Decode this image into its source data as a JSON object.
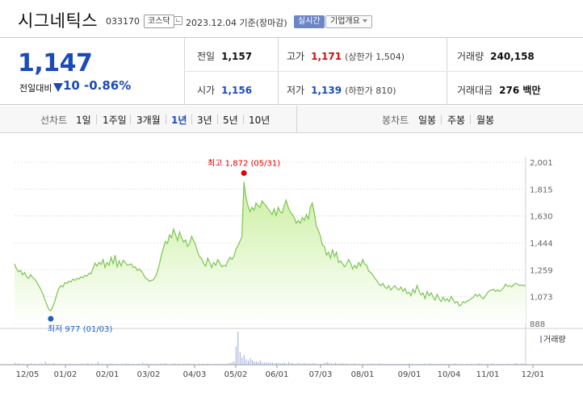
{
  "header": {
    "name": "시그네틱스",
    "code": "033170",
    "market": "코스닥",
    "date": "2023.12.04 기준(장마감)",
    "realtime": "실시간",
    "overview": "기업개요"
  },
  "quote": {
    "price": "1,147",
    "change_label": "전일대비",
    "change": "10",
    "change_pct": "-0.86%",
    "prev_close_label": "전일",
    "prev_close": "1,157",
    "high_label": "고가",
    "high": "1,171",
    "upper_limit": "(상한가 1,504)",
    "volume_label": "거래량",
    "volume": "240,158",
    "open_label": "시가",
    "open": "1,156",
    "low_label": "저가",
    "low": "1,139",
    "lower_limit": "(하한가 810)",
    "value_label": "거래대금",
    "value": "276 백만"
  },
  "tabs": {
    "line_label": "선차트",
    "periods": [
      "1일",
      "1주일",
      "3개월",
      "1년",
      "3년",
      "5년",
      "10년"
    ],
    "active": "1년",
    "candle_label": "봉차트",
    "candles": [
      "일봉",
      "주봉",
      "월봉"
    ]
  },
  "colors": {
    "line": "#7cc452",
    "fill_top": "#c9ef9e",
    "high_marker": "#e00000",
    "low_marker": "#1a5fc7",
    "volume": "#9aa8d6"
  },
  "chart_data": {
    "type": "area",
    "title": "",
    "ylim": [
      888,
      2001
    ],
    "yticks": [
      "2,001",
      "1,815",
      "1,630",
      "1,444",
      "1,259",
      "1,073",
      "888"
    ],
    "xticks": [
      "12/05",
      "01/02",
      "02/01",
      "03/02",
      "04/03",
      "05/02",
      "06/01",
      "07/03",
      "08/01",
      "09/01",
      "10/04",
      "11/01",
      "12/01"
    ],
    "high_annotation": "최고 1,872 (05/31)",
    "low_annotation": "최저 977 (01/03)",
    "volume_label": "거래량",
    "series": [
      {
        "values": [
          1300,
          1265,
          1245,
          1255,
          1225,
          1240,
          1210,
          1200,
          1225,
          1205,
          1195,
          1175,
          1150,
          1125,
          1095,
          1055,
          1020,
          985,
          977,
          1005,
          1040,
          1090,
          1130,
          1150,
          1140,
          1170,
          1165,
          1180,
          1175,
          1195,
          1185,
          1200,
          1195,
          1210,
          1205,
          1220,
          1215,
          1235,
          1230,
          1270,
          1305,
          1285,
          1310,
          1295,
          1330,
          1275,
          1310,
          1290,
          1345,
          1300,
          1360,
          1280,
          1320,
          1285,
          1325,
          1310,
          1290,
          1295,
          1300,
          1275,
          1280,
          1255,
          1265,
          1250,
          1230,
          1200,
          1195,
          1180,
          1185,
          1190,
          1210,
          1245,
          1300,
          1360,
          1410,
          1455,
          1440,
          1500,
          1480,
          1540,
          1500,
          1460,
          1520,
          1480,
          1450,
          1465,
          1420,
          1440,
          1490,
          1460,
          1430,
          1380,
          1350,
          1335,
          1300,
          1285,
          1340,
          1310,
          1275,
          1310,
          1290,
          1330,
          1305,
          1280,
          1290,
          1285,
          1320,
          1345,
          1330,
          1350,
          1400,
          1425,
          1455,
          1485,
          1865,
          1760,
          1700,
          1660,
          1690,
          1670,
          1720,
          1700,
          1690,
          1735,
          1715,
          1700,
          1680,
          1660,
          1640,
          1680,
          1630,
          1690,
          1660,
          1650,
          1700,
          1740,
          1690,
          1660,
          1640,
          1620,
          1580,
          1600,
          1580,
          1620,
          1600,
          1640,
          1610,
          1690,
          1720,
          1650,
          1560,
          1530,
          1490,
          1430,
          1420,
          1360,
          1380,
          1340,
          1400,
          1350,
          1380,
          1310,
          1320,
          1300,
          1280,
          1300,
          1330,
          1305,
          1265,
          1290,
          1270,
          1310,
          1285,
          1330,
          1300,
          1290,
          1250,
          1240,
          1225,
          1200,
          1185,
          1160,
          1150,
          1165,
          1140,
          1130,
          1150,
          1120,
          1135,
          1150,
          1130,
          1120,
          1140,
          1110,
          1130,
          1095,
          1105,
          1080,
          1125,
          1100,
          1150,
          1115,
          1085,
          1100,
          1060,
          1110,
          1080,
          1100,
          1070,
          1050,
          1090,
          1060,
          1040,
          1070,
          1045,
          1060,
          1040,
          1075,
          1050,
          1030,
          1040,
          1010,
          1020,
          1040,
          1030,
          1045,
          1050,
          1060,
          1070,
          1090,
          1075,
          1090,
          1070,
          1060,
          1080,
          1100,
          1115,
          1120,
          1125,
          1110,
          1120,
          1110,
          1120,
          1135,
          1160,
          1145,
          1150,
          1140,
          1155,
          1165,
          1160,
          1150,
          1155,
          1150,
          1147
        ]
      }
    ],
    "volume": [
      6,
      3,
      4,
      2,
      3,
      2,
      2,
      3,
      4,
      2,
      3,
      2,
      3,
      4,
      2,
      9,
      3,
      4,
      2,
      5,
      3,
      2,
      3,
      2,
      2,
      3,
      2,
      4,
      2,
      3,
      2,
      3,
      2,
      4,
      2,
      3,
      5,
      2,
      3,
      2,
      3,
      8,
      2,
      3,
      2,
      3,
      2,
      4,
      3,
      2,
      3,
      2,
      2,
      3,
      2,
      4,
      3,
      2,
      3,
      2,
      2,
      3,
      2,
      6,
      3,
      4,
      2,
      3,
      2,
      2,
      3,
      2,
      4,
      3,
      5,
      3,
      2,
      3,
      3,
      4,
      2,
      3,
      2,
      3,
      2,
      4,
      3,
      2,
      3,
      2,
      2,
      3,
      2,
      3,
      2,
      4,
      3,
      2,
      2,
      3,
      2,
      3,
      2,
      3,
      2,
      4,
      5,
      7,
      10,
      55,
      100,
      38,
      22,
      30,
      16,
      12,
      20,
      14,
      10,
      9,
      8,
      12,
      7,
      6,
      8,
      5,
      7,
      6,
      4,
      5,
      6,
      4,
      5,
      6,
      3,
      8,
      4,
      5,
      3,
      4,
      6,
      3,
      4,
      5,
      3,
      4,
      3,
      5,
      4,
      3,
      2,
      3,
      4,
      6,
      8,
      5,
      4,
      3,
      6,
      4,
      3,
      5,
      3,
      4,
      3,
      2,
      3,
      4,
      3,
      2,
      3,
      2,
      3,
      2,
      3,
      2,
      4,
      3,
      2,
      3,
      4,
      2,
      3,
      2,
      2,
      3,
      2,
      3,
      2,
      3,
      2,
      2,
      3,
      2,
      4,
      2,
      3,
      2,
      2,
      3,
      2,
      2,
      3,
      2,
      3,
      4,
      2,
      3,
      2,
      2,
      3,
      2,
      3,
      2,
      2,
      3,
      2,
      4,
      3,
      2,
      3,
      2,
      2,
      3,
      2,
      3,
      2,
      2,
      3,
      4,
      3,
      2,
      3,
      2,
      2,
      4,
      3,
      2,
      3,
      2,
      3,
      2,
      2,
      3,
      2,
      2,
      3,
      5,
      3,
      2,
      4,
      3,
      2
    ]
  }
}
